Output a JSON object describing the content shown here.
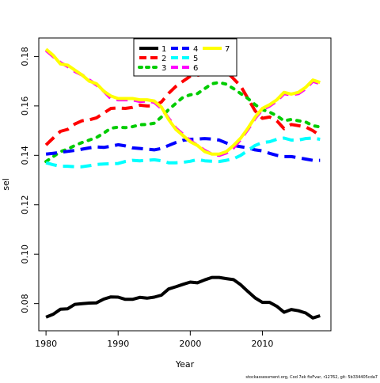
{
  "chart_data": {
    "type": "line",
    "title": "",
    "xlabel": "Year",
    "ylabel": "sel",
    "xlim": [
      1979,
      2019.5
    ],
    "ylim": [
      0.069,
      0.1875
    ],
    "xticks": [
      1980,
      1990,
      2000,
      2010
    ],
    "yticks": [
      0.08,
      0.1,
      0.12,
      0.14,
      0.16,
      0.18
    ],
    "ytick_labels": [
      "0.08",
      "0.10",
      "0.12",
      "0.14",
      "0.16",
      "0.18"
    ],
    "grid": false,
    "legend_position": "top",
    "footer": "stockassessment.org, Cod 7ek fixFvar, r12762, git: 5b334405cda7",
    "series": [
      {
        "name": "1",
        "color": "#000000",
        "dash": "solid",
        "x": [
          1980,
          1981,
          1982,
          1983,
          1984,
          1985,
          1986,
          1987,
          1988,
          1989,
          1990,
          1991,
          1992,
          1993,
          1994,
          1995,
          1996,
          1997,
          1998,
          1999,
          2000,
          2001,
          2002,
          2003,
          2004,
          2005,
          2006,
          2007,
          2008,
          2009,
          2010,
          2011,
          2012,
          2013,
          2014,
          2015,
          2016,
          2017,
          2018
        ],
        "y": [
          0.0745,
          0.0757,
          0.0777,
          0.0779,
          0.0797,
          0.08,
          0.0802,
          0.0803,
          0.0818,
          0.0827,
          0.0826,
          0.0817,
          0.0817,
          0.0825,
          0.0822,
          0.0826,
          0.0834,
          0.0859,
          0.0868,
          0.0878,
          0.0887,
          0.0884,
          0.0896,
          0.0906,
          0.0906,
          0.0901,
          0.0897,
          0.0876,
          0.0849,
          0.0823,
          0.0805,
          0.0805,
          0.0789,
          0.0765,
          0.0776,
          0.0771,
          0.0762,
          0.0742,
          0.0751
        ]
      },
      {
        "name": "2",
        "color": "#ff0000",
        "dash": "dashed",
        "x": [
          1980,
          1981,
          1982,
          1983,
          1984,
          1985,
          1986,
          1987,
          1988,
          1989,
          1990,
          1991,
          1992,
          1993,
          1994,
          1995,
          1996,
          1997,
          1998,
          1999,
          2000,
          2001,
          2002,
          2003,
          2004,
          2005,
          2006,
          2007,
          2008,
          2009,
          2010,
          2011,
          2012,
          2013,
          2014,
          2015,
          2016,
          2017,
          2018
        ],
        "y": [
          0.1442,
          0.147,
          0.1497,
          0.1505,
          0.1527,
          0.154,
          0.1544,
          0.1552,
          0.1571,
          0.159,
          0.1592,
          0.159,
          0.1594,
          0.1603,
          0.16,
          0.16,
          0.1616,
          0.1651,
          0.1679,
          0.17,
          0.172,
          0.1724,
          0.173,
          0.1735,
          0.174,
          0.174,
          0.171,
          0.168,
          0.163,
          0.158,
          0.155,
          0.1555,
          0.154,
          0.1508,
          0.1525,
          0.152,
          0.1515,
          0.15,
          0.148
        ]
      },
      {
        "name": "3",
        "color": "#00cc00",
        "dash": "dotted",
        "x": [
          1980,
          1981,
          1982,
          1983,
          1984,
          1985,
          1986,
          1987,
          1988,
          1989,
          1990,
          1991,
          1992,
          1993,
          1994,
          1995,
          1996,
          1997,
          1998,
          1999,
          2000,
          2001,
          2002,
          2003,
          2004,
          2005,
          2006,
          2007,
          2008,
          2009,
          2010,
          2011,
          2012,
          2013,
          2014,
          2015,
          2016,
          2017,
          2018
        ],
        "y": [
          0.1375,
          0.1395,
          0.1415,
          0.1425,
          0.144,
          0.1452,
          0.1462,
          0.1472,
          0.149,
          0.151,
          0.1514,
          0.1512,
          0.1516,
          0.1524,
          0.1525,
          0.153,
          0.1555,
          0.1585,
          0.161,
          0.1635,
          0.1645,
          0.165,
          0.167,
          0.169,
          0.1695,
          0.1688,
          0.167,
          0.165,
          0.163,
          0.1605,
          0.1585,
          0.1575,
          0.156,
          0.154,
          0.1545,
          0.154,
          0.1535,
          0.152,
          0.1515
        ]
      },
      {
        "name": "4",
        "color": "#0000ff",
        "dash": "dashed",
        "x": [
          1980,
          1981,
          1982,
          1983,
          1984,
          1985,
          1986,
          1987,
          1988,
          1989,
          1990,
          1991,
          1992,
          1993,
          1994,
          1995,
          1996,
          1997,
          1998,
          1999,
          2000,
          2001,
          2002,
          2003,
          2004,
          2005,
          2006,
          2007,
          2008,
          2009,
          2010,
          2011,
          2012,
          2013,
          2014,
          2015,
          2016,
          2017,
          2018
        ],
        "y": [
          0.1405,
          0.1408,
          0.1412,
          0.1416,
          0.142,
          0.1425,
          0.143,
          0.1434,
          0.1432,
          0.1437,
          0.1443,
          0.1438,
          0.143,
          0.1428,
          0.1425,
          0.1422,
          0.1428,
          0.144,
          0.1452,
          0.1461,
          0.1465,
          0.1466,
          0.1468,
          0.1466,
          0.1462,
          0.145,
          0.144,
          0.1435,
          0.143,
          0.1422,
          0.1418,
          0.1408,
          0.14,
          0.1395,
          0.1395,
          0.139,
          0.1385,
          0.138,
          0.138
        ]
      },
      {
        "name": "5",
        "color": "#00ffff",
        "dash": "dashed",
        "x": [
          1980,
          1981,
          1982,
          1983,
          1984,
          1985,
          1986,
          1987,
          1988,
          1989,
          1990,
          1991,
          1992,
          1993,
          1994,
          1995,
          1996,
          1997,
          1998,
          1999,
          2000,
          2001,
          2002,
          2003,
          2004,
          2005,
          2006,
          2007,
          2008,
          2009,
          2010,
          2011,
          2012,
          2013,
          2014,
          2015,
          2016,
          2017,
          2018
        ],
        "y": [
          0.137,
          0.1362,
          0.1356,
          0.1356,
          0.1354,
          0.1354,
          0.1358,
          0.1363,
          0.1365,
          0.1366,
          0.1367,
          0.1375,
          0.138,
          0.1378,
          0.138,
          0.1382,
          0.1378,
          0.137,
          0.137,
          0.1372,
          0.1376,
          0.1383,
          0.1378,
          0.1376,
          0.1375,
          0.138,
          0.1386,
          0.14,
          0.142,
          0.144,
          0.1452,
          0.1455,
          0.1465,
          0.147,
          0.1462,
          0.1462,
          0.1468,
          0.147,
          0.1465
        ]
      },
      {
        "name": "6",
        "color": "#ff00ff",
        "dash": "dashed",
        "x": [
          1980,
          1981,
          1982,
          1983,
          1984,
          1985,
          1986,
          1987,
          1988,
          1989,
          1990,
          1991,
          1992,
          1993,
          1994,
          1995,
          1996,
          1997,
          1998,
          1999,
          2000,
          2001,
          2002,
          2003,
          2004,
          2005,
          2006,
          2007,
          2008,
          2009,
          2010,
          2011,
          2012,
          2013,
          2014,
          2015,
          2016,
          2017,
          2018
        ],
        "y": [
          0.1825,
          0.18,
          0.1775,
          0.176,
          0.174,
          0.1725,
          0.1705,
          0.1685,
          0.166,
          0.163,
          0.1625,
          0.1625,
          0.1625,
          0.1618,
          0.162,
          0.1615,
          0.159,
          0.155,
          0.151,
          0.1485,
          0.146,
          0.144,
          0.142,
          0.1405,
          0.14,
          0.141,
          0.143,
          0.1465,
          0.1505,
          0.155,
          0.1585,
          0.16,
          0.162,
          0.165,
          0.1645,
          0.165,
          0.167,
          0.17,
          0.169
        ]
      },
      {
        "name": "7",
        "color": "#ffff00",
        "dash": "solid",
        "x": [
          1980,
          1981,
          1982,
          1983,
          1984,
          1985,
          1986,
          1987,
          1988,
          1989,
          1990,
          1991,
          1992,
          1993,
          1994,
          1995,
          1996,
          1997,
          1998,
          1999,
          2000,
          2001,
          2002,
          2003,
          2004,
          2005,
          2006,
          2007,
          2008,
          2009,
          2010,
          2011,
          2012,
          2013,
          2014,
          2015,
          2016,
          2017,
          2018
        ],
        "y": [
          0.183,
          0.1805,
          0.177,
          0.1765,
          0.1745,
          0.1725,
          0.17,
          0.169,
          0.166,
          0.164,
          0.163,
          0.163,
          0.163,
          0.1625,
          0.1625,
          0.162,
          0.1595,
          0.1545,
          0.1505,
          0.148,
          0.1455,
          0.144,
          0.1415,
          0.1405,
          0.1405,
          0.1415,
          0.144,
          0.147,
          0.151,
          0.1555,
          0.159,
          0.1605,
          0.1625,
          0.1655,
          0.1648,
          0.1655,
          0.1675,
          0.1705,
          0.1695
        ]
      }
    ]
  }
}
